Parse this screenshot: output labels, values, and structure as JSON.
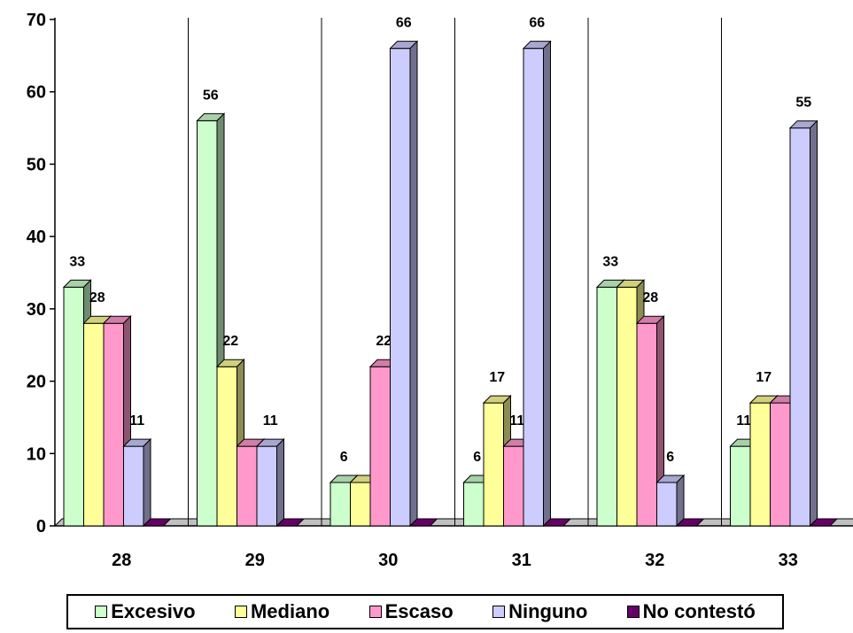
{
  "chart_data": {
    "type": "bar",
    "categories": [
      "28",
      "29",
      "30",
      "31",
      "32",
      "33"
    ],
    "series": [
      {
        "name": "Excesivo",
        "values": [
          33,
          56,
          6,
          6,
          33,
          11
        ],
        "color": "#ccffcc"
      },
      {
        "name": "Mediano",
        "values": [
          28,
          22,
          6,
          17,
          33,
          17
        ],
        "color": "#ffff99"
      },
      {
        "name": "Escaso",
        "values": [
          28,
          11,
          22,
          11,
          28,
          17
        ],
        "color": "#ff99cc"
      },
      {
        "name": "Ninguno",
        "values": [
          11,
          11,
          66,
          66,
          6,
          55
        ],
        "color": "#ccccff"
      },
      {
        "name": "No contestó",
        "values": [
          0,
          0,
          0,
          0,
          0,
          0
        ],
        "color": "#660066"
      }
    ],
    "data_labels": [
      [
        "33",
        "28",
        "",
        "11",
        ""
      ],
      [
        "56",
        "22",
        "",
        "11",
        ""
      ],
      [
        "6",
        "",
        "22",
        "66",
        ""
      ],
      [
        "6",
        "17",
        "11",
        "66",
        ""
      ],
      [
        "33",
        "",
        "28",
        "6",
        ""
      ],
      [
        "11",
        "17",
        "",
        "55",
        ""
      ]
    ],
    "ylim": [
      0,
      70
    ],
    "yticks": [
      0,
      10,
      20,
      30,
      40,
      50,
      60,
      70
    ],
    "title": "",
    "xlabel": "",
    "ylabel": "",
    "grid": "vertical separators between categories",
    "legend": {
      "placement": "bottom"
    }
  }
}
